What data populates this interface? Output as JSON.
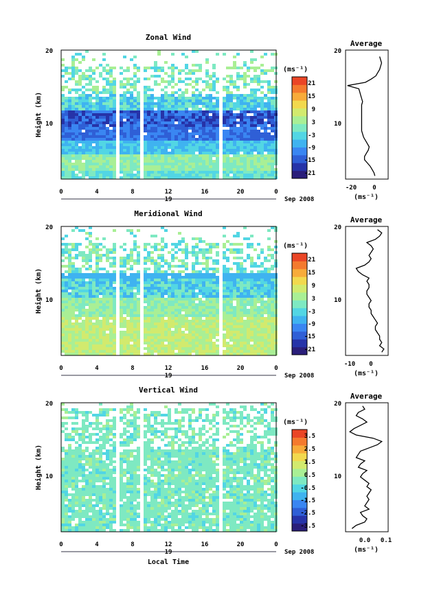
{
  "chart_data": [
    {
      "type": "heatmap",
      "title": "Zonal Wind",
      "ylabel": "Height (km)",
      "y_ticks": [
        "20",
        "10"
      ],
      "x_ticks": [
        "0",
        "4",
        "8",
        "12",
        "16",
        "20",
        "0"
      ],
      "date_day": "19",
      "date_label": "Sep 2008",
      "colorbar": {
        "unit": "(ms⁻¹)",
        "ticks": [
          "21",
          "15",
          "9",
          "3",
          "-3",
          "-9",
          "-15",
          "-21"
        ],
        "range": [
          -24,
          24
        ]
      },
      "profile": {
        "title": "Average",
        "y_ticks": [
          "20",
          "10"
        ],
        "x_ticks": [
          "-20",
          "0"
        ],
        "xlabel": "(ms⁻¹)",
        "xlim": [
          -30,
          15
        ],
        "heights": [
          0.5,
          1,
          1.5,
          2,
          2.5,
          3,
          3.5,
          4,
          4.5,
          5,
          5.5,
          6,
          6.5,
          7,
          7.5,
          8,
          8.5,
          9,
          9.5,
          10,
          10.5,
          11,
          11.5,
          12,
          12.5,
          13,
          13.5,
          14,
          14.5,
          15,
          15.5,
          16,
          16.5,
          17,
          17.5,
          18,
          18.5,
          19
        ],
        "values": [
          1,
          0,
          -2,
          -4,
          -7,
          -10,
          -10,
          -8,
          -6,
          -5,
          -7,
          -9,
          -11,
          -12,
          -13,
          -13,
          -13,
          -13,
          -13,
          -13,
          -13,
          -13,
          -13,
          -12,
          -13,
          -14,
          -15,
          -16,
          -28,
          -9,
          -3,
          2,
          4,
          6,
          7,
          8,
          7,
          6
        ]
      }
    },
    {
      "type": "heatmap",
      "title": "Meridional Wind",
      "ylabel": "Height (km)",
      "y_ticks": [
        "20",
        "10"
      ],
      "x_ticks": [
        "0",
        "4",
        "8",
        "12",
        "16",
        "20",
        "0"
      ],
      "date_day": "19",
      "date_label": "Sep 2008",
      "colorbar": {
        "unit": "(ms⁻¹)",
        "ticks": [
          "21",
          "15",
          "9",
          "3",
          "-3",
          "-9",
          "-15",
          "-21"
        ],
        "range": [
          -24,
          24
        ]
      },
      "profile": {
        "title": "Average",
        "y_ticks": [
          "20",
          "10"
        ],
        "x_ticks": [
          "-10",
          "0"
        ],
        "xlabel": "(ms⁻¹)",
        "xlim": [
          -14,
          6
        ],
        "heights": [
          0.5,
          1,
          1.5,
          2,
          2.5,
          3,
          3.5,
          4,
          4.5,
          5,
          5.5,
          6,
          6.5,
          7,
          7.5,
          8,
          8.5,
          9,
          9.5,
          10,
          10.5,
          11,
          11.5,
          12,
          12.5,
          13,
          13.5,
          14,
          14.5,
          15,
          15.5,
          16,
          16.5,
          17,
          17.5,
          18,
          18.5,
          19,
          19.5
        ],
        "values": [
          3,
          4,
          2,
          3,
          2,
          2,
          1,
          0,
          0,
          1,
          0,
          -1,
          -2,
          -2,
          -3,
          -3,
          -2,
          -3,
          -4,
          -4,
          -3,
          -3,
          -4,
          -3,
          -6,
          -8,
          -9,
          -5,
          -3,
          -2,
          -3,
          -2,
          -1,
          -2,
          -4,
          0,
          2,
          3,
          1
        ]
      }
    },
    {
      "type": "heatmap",
      "title": "Vertical Wind",
      "ylabel": "Height (km)",
      "y_ticks": [
        "20",
        "10"
      ],
      "x_ticks": [
        "0",
        "4",
        "8",
        "12",
        "16",
        "20",
        "0"
      ],
      "date_day": "19",
      "date_label": "Sep 2008",
      "xlabel": "Local Time",
      "colorbar": {
        "unit": "(ms⁻¹)",
        "ticks": [
          "3.5",
          "2.5",
          "1.5",
          "0.5",
          "-0.5",
          "-1.5",
          "-2.5",
          "-3.5"
        ],
        "range": [
          -4,
          4
        ]
      },
      "profile": {
        "title": "Average",
        "y_ticks": [
          "20",
          "10"
        ],
        "x_ticks": [
          "0.0",
          "0.1"
        ],
        "xlabel": "(ms⁻¹)",
        "xlim": [
          -0.08,
          0.12
        ],
        "heights": [
          0.5,
          1,
          1.5,
          2,
          2.5,
          3,
          3.5,
          4,
          4.5,
          5,
          5.5,
          6,
          6.5,
          7,
          7.5,
          8,
          8.5,
          9,
          9.5,
          10,
          10.5,
          11,
          11.5,
          12,
          12.5,
          13,
          13.5,
          14,
          14.5,
          15,
          15.5,
          16,
          16.5,
          17,
          17.5,
          18,
          18.5,
          19,
          19.5
        ],
        "values": [
          -0.05,
          -0.03,
          0.01,
          0.02,
          0.0,
          -0.01,
          0.03,
          0.01,
          0.02,
          0.03,
          0.02,
          0.03,
          0.04,
          0.02,
          0.03,
          0.01,
          -0.01,
          0.0,
          0.02,
          -0.02,
          -0.01,
          0.01,
          -0.03,
          -0.02,
          -0.01,
          0.03,
          0.07,
          0.09,
          0.05,
          -0.03,
          -0.06,
          -0.04,
          -0.01,
          0.02,
          0.0,
          -0.03,
          -0.02,
          0.01,
          0.0
        ]
      }
    }
  ]
}
